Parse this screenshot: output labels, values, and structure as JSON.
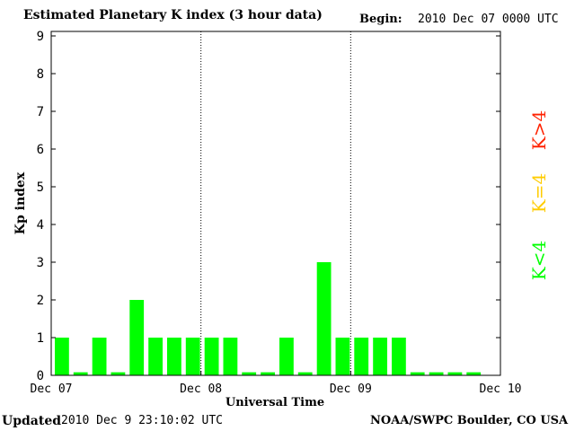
{
  "header": {
    "title": "Estimated Planetary K index (3 hour data)",
    "begin_label": "Begin:",
    "begin_value": "2010 Dec 07 0000 UTC"
  },
  "footer": {
    "updated_label": "Updated",
    "updated_value": "2010 Dec  9 23:10:02 UTC",
    "credit": "NOAA/SWPC Boulder, CO USA"
  },
  "legend": {
    "items": [
      {
        "label": "K<4",
        "color": "#00ff00"
      },
      {
        "label": "K=4",
        "color": "#ffcc00"
      },
      {
        "label": "K>4",
        "color": "#ff2200"
      }
    ]
  },
  "chart_data": {
    "type": "bar",
    "title": "Estimated Planetary K index (3 hour data)",
    "xlabel": "Universal Time",
    "ylabel": "Kp index",
    "ylim": [
      0,
      9
    ],
    "yticks": [
      0,
      1,
      2,
      3,
      4,
      5,
      6,
      7,
      8,
      9
    ],
    "xticks": [
      "Dec 07",
      "Dec 08",
      "Dec 09",
      "Dec 10"
    ],
    "interval_hours": 3,
    "values": [
      1,
      0,
      1,
      0,
      2,
      1,
      1,
      1,
      1,
      1,
      0,
      0,
      1,
      0,
      3,
      1,
      1,
      1,
      1,
      0,
      0,
      0,
      0
    ],
    "bar_color": "#00ff00",
    "grid": "vertical dotted day separators"
  }
}
